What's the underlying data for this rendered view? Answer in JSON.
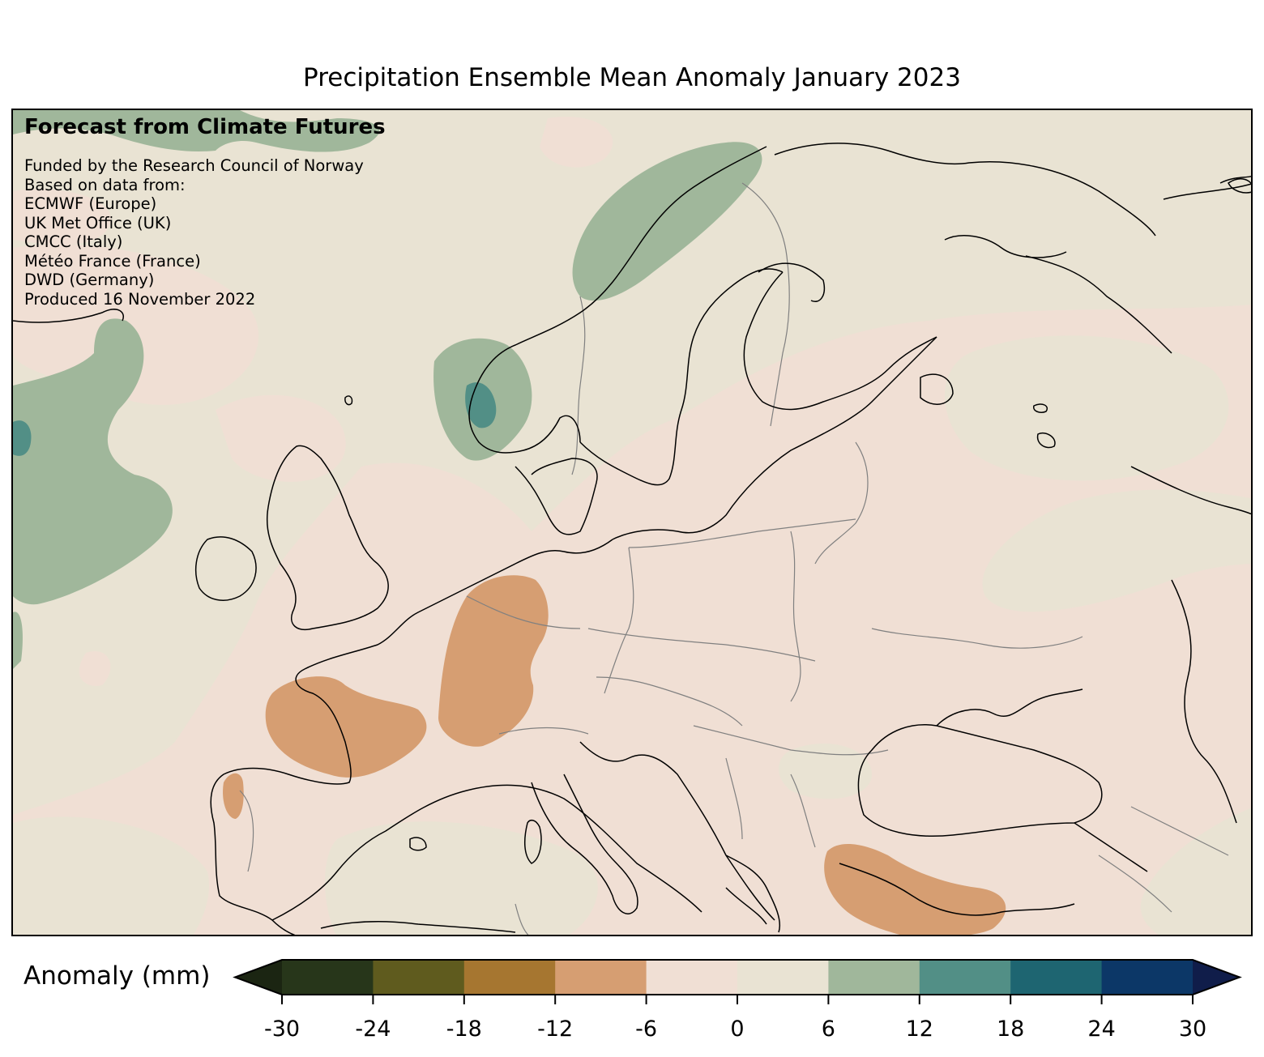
{
  "title": "Precipitation Ensemble Mean Anomaly January 2023",
  "credits": {
    "heading": "Forecast from Climate Futures",
    "lines": [
      "Funded by the Research Council of Norway",
      "Based on data from:",
      "ECMWF (Europe)",
      "UK Met Office (UK)",
      "CMCC (Italy)",
      "Météo France (France)",
      "DWD (Germany)",
      "Produced 16 November 2022"
    ]
  },
  "colorbar": {
    "label": "Anomaly (mm)",
    "ticks": [
      "-30",
      "-24",
      "-18",
      "-12",
      "-6",
      "0",
      "6",
      "12",
      "18",
      "24",
      "30"
    ],
    "colors": [
      "#27361a",
      "#5f5b1e",
      "#a67630",
      "#d69e72",
      "#f0dfd4",
      "#e9e3d3",
      "#a0b79b",
      "#528f86",
      "#1e6571",
      "#0c3767"
    ],
    "under_color": "#1b2512",
    "over_color": "#101d4a"
  },
  "map": {
    "region": "Europe",
    "background_color": "#e9e3d3",
    "coastline_color": "#000000",
    "border_color": "#808080"
  }
}
